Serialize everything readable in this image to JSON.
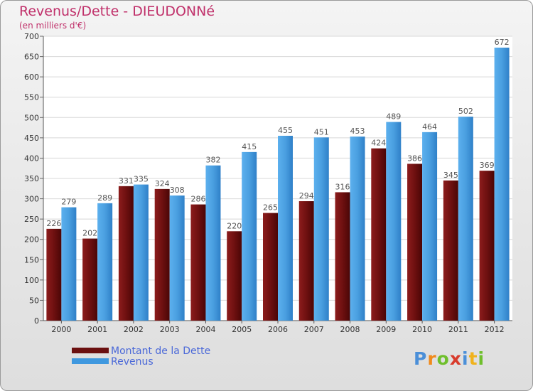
{
  "header": {
    "title": "Revenus/Dette - DIEUDONNé",
    "subtitle": "(en milliers d'€)"
  },
  "chart_data": {
    "type": "bar",
    "title": "Revenus/Dette - DIEUDONNé",
    "ylabel": "(en milliers d'€)",
    "xlabel": "",
    "ylim": [
      0,
      700
    ],
    "yticks": [
      0,
      50,
      100,
      150,
      200,
      250,
      300,
      350,
      400,
      450,
      500,
      550,
      600,
      650,
      700
    ],
    "grid": true,
    "categories": [
      "2000",
      "2001",
      "2002",
      "2003",
      "2004",
      "2005",
      "2006",
      "2007",
      "2008",
      "2009",
      "2010",
      "2011",
      "2012"
    ],
    "series": [
      {
        "name": "Montant de la Dette",
        "color": "#7a1414",
        "values": [
          226,
          202,
          331,
          324,
          286,
          220,
          265,
          294,
          316,
          424,
          386,
          345,
          369
        ]
      },
      {
        "name": "Revenus",
        "color": "#4a9fe0",
        "values": [
          279,
          289,
          335,
          308,
          382,
          415,
          455,
          451,
          453,
          489,
          464,
          502,
          672
        ]
      }
    ],
    "legend": "bottom-left"
  },
  "legend": {
    "items": [
      {
        "label": "Montant de la Dette",
        "color": "#6b1010"
      },
      {
        "label": "Revenus",
        "color": "#3f98df"
      }
    ]
  },
  "logo": {
    "text": "Proxiti",
    "letters": [
      "P",
      "r",
      "o",
      "x",
      "i",
      "t",
      "i"
    ],
    "colors": [
      "#4b8fd8",
      "#f08a1c",
      "#6fbf2c",
      "#d83b2c",
      "#4b8fd8",
      "#f0b21c",
      "#6fbf2c"
    ]
  }
}
